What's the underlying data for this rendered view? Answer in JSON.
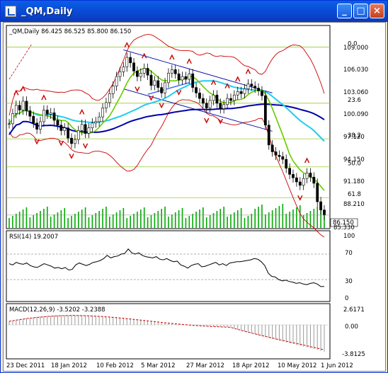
{
  "window": {
    "title": "_QM,Daily",
    "minimize_glyph": "_",
    "maximize_glyph": "□",
    "close_glyph": "×"
  },
  "main_chart": {
    "header": "_QM,Daily  86.425 86.525 85.800 86.150",
    "price_labels": [
      "109.000",
      "106.030",
      "103.060",
      "100.090",
      "97.120",
      "94.150",
      "91.180",
      "88.210",
      "86.150",
      "85.330"
    ],
    "current_price": "86.150",
    "fib_levels": [
      {
        "label": "0.0",
        "price": 110.7
      },
      {
        "label": "23.6",
        "price": 102.5
      },
      {
        "label": "38.2",
        "price": 97.3
      },
      {
        "label": "50.0",
        "price": 93.2
      },
      {
        "label": "61.8",
        "price": 88.7
      }
    ],
    "colors": {
      "bollinger": "#cc0000",
      "ma_short": "#66cc00",
      "ma_mid": "#22ccee",
      "ma_long": "#0000aa",
      "trendline": "#0000aa",
      "volume": "#00aa00",
      "fib": "#99cc33",
      "fractal": "#cc0000"
    }
  },
  "rsi_panel": {
    "header": "RSI(14) 19.2007",
    "levels": [
      "70",
      "30",
      "0",
      "100"
    ]
  },
  "macd_panel": {
    "header": "MACD(12,26,9) -3.5202 -3.2388",
    "levels": [
      "2.6171",
      "0.00",
      "-3.8125"
    ]
  },
  "time_axis": {
    "labels": [
      "23 Dec 2011",
      "18 Jan 2012",
      "10 Feb 2012",
      "5 Mar 2012",
      "27 Mar 2012",
      "18 Apr 2012",
      "10 May 2012",
      "1 Jun 2012"
    ]
  },
  "chart_data": {
    "type": "line",
    "title": "_QM,Daily",
    "x_start": "23 Dec 2011",
    "x_end": "1 Jun 2012",
    "close": [
      99.5,
      101.0,
      102.2,
      101.5,
      102.8,
      101.4,
      100.6,
      99.6,
      98.7,
      99.8,
      101.5,
      100.9,
      101.1,
      100.0,
      99.3,
      98.5,
      98.9,
      97.4,
      96.6,
      97.2,
      98.5,
      99.4,
      98.1,
      98.9,
      99.6,
      99.8,
      100.5,
      101.8,
      102.6,
      103.9,
      105.0,
      106.4,
      107.1,
      107.8,
      109.2,
      108.4,
      107.2,
      106.4,
      106.9,
      107.6,
      106.6,
      105.1,
      105.8,
      104.8,
      104.0,
      105.5,
      106.9,
      107.4,
      106.8,
      105.9,
      106.4,
      106.0,
      106.8,
      104.8,
      104.0,
      103.2,
      102.5,
      101.8,
      102.9,
      103.7,
      102.5,
      101.7,
      102.3,
      103.2,
      102.9,
      103.7,
      104.2,
      103.9,
      104.6,
      105.3,
      105.0,
      104.7,
      104.3,
      103.6,
      99.3,
      96.4,
      95.4,
      94.9,
      94.7,
      94.3,
      93.0,
      92.1,
      91.6,
      91.0,
      90.5,
      91.5,
      92.3,
      91.7,
      90.8,
      88.1,
      86.9,
      86.15
    ],
    "volume_high": "moderate",
    "rsi": [
      55,
      53,
      57,
      55,
      54,
      56,
      52,
      50,
      49,
      52,
      55,
      53,
      51,
      48,
      49,
      47,
      49,
      45,
      46,
      53,
      56,
      54,
      52,
      54,
      57,
      58,
      60,
      63,
      68,
      64,
      66,
      67,
      70,
      71,
      78,
      72,
      70,
      72,
      68,
      66,
      65,
      64,
      66,
      62,
      61,
      63,
      60,
      58,
      59,
      53,
      51,
      48,
      52,
      54,
      55,
      50,
      51,
      53,
      55,
      57,
      53,
      55,
      52,
      56,
      57,
      58,
      58,
      59,
      60,
      61,
      63,
      62,
      58,
      52,
      40,
      35,
      34,
      30,
      28,
      29,
      27,
      26,
      24,
      25,
      23,
      22,
      24,
      25,
      23,
      19,
      19.2
    ],
    "macd_signal_last": -3.2388,
    "macd_last": -3.5202,
    "macd_min": -3.8125,
    "macd_max": 2.6171
  }
}
